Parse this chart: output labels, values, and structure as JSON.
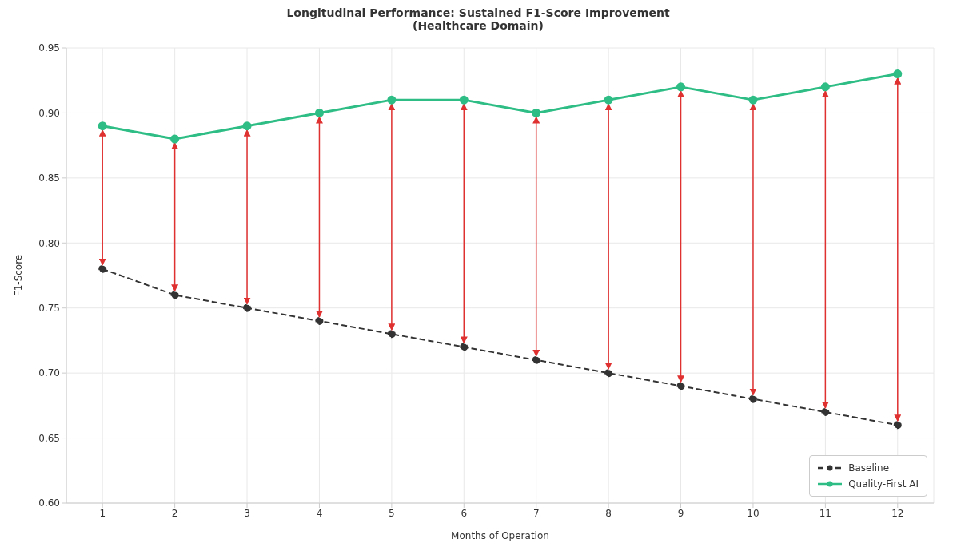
{
  "chart_data": {
    "type": "line",
    "title": "Longitudinal Performance: Sustained F1-Score Improvement\n(Healthcare Domain)",
    "xlabel": "Months of Operation",
    "ylabel": "F1-Score",
    "x": [
      1,
      2,
      3,
      4,
      5,
      6,
      7,
      8,
      9,
      10,
      11,
      12
    ],
    "series": [
      {
        "name": "Baseline",
        "color": "#333333",
        "line_style": "dashed",
        "values": [
          0.78,
          0.76,
          0.75,
          0.74,
          0.73,
          0.72,
          0.71,
          0.7,
          0.69,
          0.68,
          0.67,
          0.66
        ]
      },
      {
        "name": "Quality-First AI",
        "color": "#2ebd85",
        "line_style": "solid",
        "values": [
          0.89,
          0.88,
          0.89,
          0.9,
          0.91,
          0.91,
          0.9,
          0.91,
          0.92,
          0.91,
          0.92,
          0.93
        ]
      }
    ],
    "xlim": [
      0.5,
      12.5
    ],
    "xticks": [
      1,
      2,
      3,
      4,
      5,
      6,
      7,
      8,
      9,
      10,
      11,
      12
    ],
    "ylim": [
      0.6,
      0.95
    ],
    "yticks": [
      {
        "value": 0.6,
        "label": "0.60"
      },
      {
        "value": 0.65,
        "label": "0.65"
      },
      {
        "value": 0.7,
        "label": "0.70"
      },
      {
        "value": 0.75,
        "label": "0.75"
      },
      {
        "value": 0.8,
        "label": "0.80"
      },
      {
        "value": 0.85,
        "label": "0.85"
      },
      {
        "value": 0.9,
        "label": "0.90"
      },
      {
        "value": 0.95,
        "label": "0.95"
      }
    ],
    "grid": true,
    "legend": "bottom right",
    "marker": "circle"
  }
}
